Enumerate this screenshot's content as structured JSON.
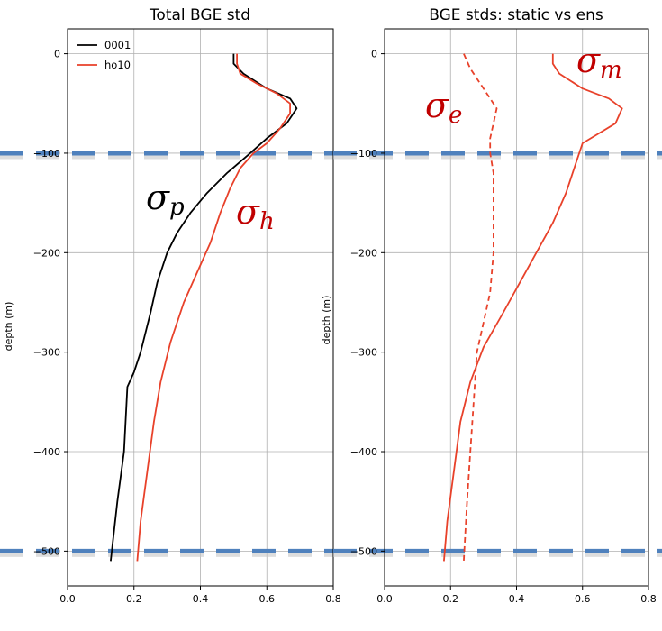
{
  "chart_data": [
    {
      "type": "line",
      "title": "Total BGE std",
      "xlabel": "",
      "ylabel": "depth (m)",
      "xlim": [
        0.0,
        0.8
      ],
      "ylim": [
        -535,
        25
      ],
      "xticks": [
        "0.0",
        "0.2",
        "0.4",
        "0.6",
        "0.8"
      ],
      "yticks": [
        "0",
        "−100",
        "−200",
        "−300",
        "−400",
        "−500"
      ],
      "xtick_values": [
        0.0,
        0.2,
        0.4,
        0.6,
        0.8
      ],
      "ytick_values": [
        0,
        -100,
        -200,
        -300,
        -400,
        -500
      ],
      "grid": true,
      "legend": "upper-left",
      "hlines": [
        {
          "y": -100,
          "color": "#4f81bd",
          "style": "dashed"
        },
        {
          "y": -500,
          "color": "#4f81bd",
          "style": "dashed"
        }
      ],
      "series": [
        {
          "name": "0001",
          "color": "#000000",
          "style": "solid",
          "points": [
            [
              0.5,
              0
            ],
            [
              0.5,
              -10
            ],
            [
              0.53,
              -20
            ],
            [
              0.6,
              -35
            ],
            [
              0.67,
              -45
            ],
            [
              0.69,
              -55
            ],
            [
              0.66,
              -70
            ],
            [
              0.6,
              -85
            ],
            [
              0.55,
              -100
            ],
            [
              0.48,
              -120
            ],
            [
              0.42,
              -140
            ],
            [
              0.37,
              -160
            ],
            [
              0.33,
              -180
            ],
            [
              0.3,
              -200
            ],
            [
              0.27,
              -230
            ],
            [
              0.25,
              -260
            ],
            [
              0.22,
              -300
            ],
            [
              0.2,
              -320
            ],
            [
              0.18,
              -335
            ],
            [
              0.17,
              -400
            ],
            [
              0.15,
              -450
            ],
            [
              0.13,
              -510
            ]
          ]
        },
        {
          "name": "ho10",
          "color": "#e8412a",
          "style": "solid",
          "points": [
            [
              0.51,
              0
            ],
            [
              0.51,
              -10
            ],
            [
              0.52,
              -20
            ],
            [
              0.57,
              -30
            ],
            [
              0.63,
              -40
            ],
            [
              0.67,
              -50
            ],
            [
              0.67,
              -60
            ],
            [
              0.64,
              -75
            ],
            [
              0.6,
              -90
            ],
            [
              0.56,
              -100
            ],
            [
              0.52,
              -115
            ],
            [
              0.49,
              -135
            ],
            [
              0.46,
              -160
            ],
            [
              0.43,
              -190
            ],
            [
              0.39,
              -220
            ],
            [
              0.35,
              -250
            ],
            [
              0.31,
              -290
            ],
            [
              0.28,
              -330
            ],
            [
              0.26,
              -370
            ],
            [
              0.24,
              -420
            ],
            [
              0.22,
              -470
            ],
            [
              0.21,
              -510
            ]
          ]
        }
      ],
      "annotations": [
        {
          "symbol": "σ",
          "subscript": "p",
          "color": "#000000"
        },
        {
          "symbol": "σ",
          "subscript": "h",
          "color": "#c00000"
        }
      ]
    },
    {
      "type": "line",
      "title": "BGE stds: static vs ens",
      "xlabel": "",
      "ylabel": "depth (m)",
      "xlim": [
        0.0,
        0.8
      ],
      "ylim": [
        -535,
        25
      ],
      "xticks": [
        "0.0",
        "0.2",
        "0.4",
        "0.6",
        "0.8"
      ],
      "yticks": [
        "0",
        "−100",
        "−200",
        "−300",
        "−400",
        "−500"
      ],
      "xtick_values": [
        0.0,
        0.2,
        0.4,
        0.6,
        0.8
      ],
      "ytick_values": [
        0,
        -100,
        -200,
        -300,
        -400,
        -500
      ],
      "grid": true,
      "hlines": [
        {
          "y": -100,
          "color": "#4f81bd",
          "style": "dashed"
        },
        {
          "y": -500,
          "color": "#4f81bd",
          "style": "dashed"
        }
      ],
      "series": [
        {
          "color": "#e8412a",
          "style": "dashed",
          "points": [
            [
              0.24,
              0
            ],
            [
              0.26,
              -15
            ],
            [
              0.29,
              -30
            ],
            [
              0.32,
              -45
            ],
            [
              0.34,
              -55
            ],
            [
              0.33,
              -70
            ],
            [
              0.32,
              -85
            ],
            [
              0.32,
              -100
            ],
            [
              0.33,
              -120
            ],
            [
              0.33,
              -160
            ],
            [
              0.33,
              -200
            ],
            [
              0.32,
              -240
            ],
            [
              0.3,
              -270
            ],
            [
              0.28,
              -300
            ],
            [
              0.27,
              -350
            ],
            [
              0.26,
              -400
            ],
            [
              0.25,
              -450
            ],
            [
              0.24,
              -510
            ]
          ]
        },
        {
          "color": "#e8412a",
          "style": "solid",
          "points": [
            [
              0.51,
              0
            ],
            [
              0.51,
              -10
            ],
            [
              0.53,
              -20
            ],
            [
              0.6,
              -35
            ],
            [
              0.68,
              -45
            ],
            [
              0.72,
              -55
            ],
            [
              0.7,
              -70
            ],
            [
              0.65,
              -80
            ],
            [
              0.6,
              -90
            ],
            [
              0.58,
              -110
            ],
            [
              0.55,
              -140
            ],
            [
              0.51,
              -170
            ],
            [
              0.46,
              -200
            ],
            [
              0.41,
              -230
            ],
            [
              0.36,
              -260
            ],
            [
              0.3,
              -295
            ],
            [
              0.26,
              -330
            ],
            [
              0.23,
              -370
            ],
            [
              0.21,
              -420
            ],
            [
              0.19,
              -470
            ],
            [
              0.18,
              -510
            ]
          ]
        }
      ],
      "annotations": [
        {
          "symbol": "σ",
          "subscript": "e",
          "color": "#c00000"
        },
        {
          "symbol": "σ",
          "subscript": "m",
          "color": "#c00000"
        }
      ]
    }
  ]
}
